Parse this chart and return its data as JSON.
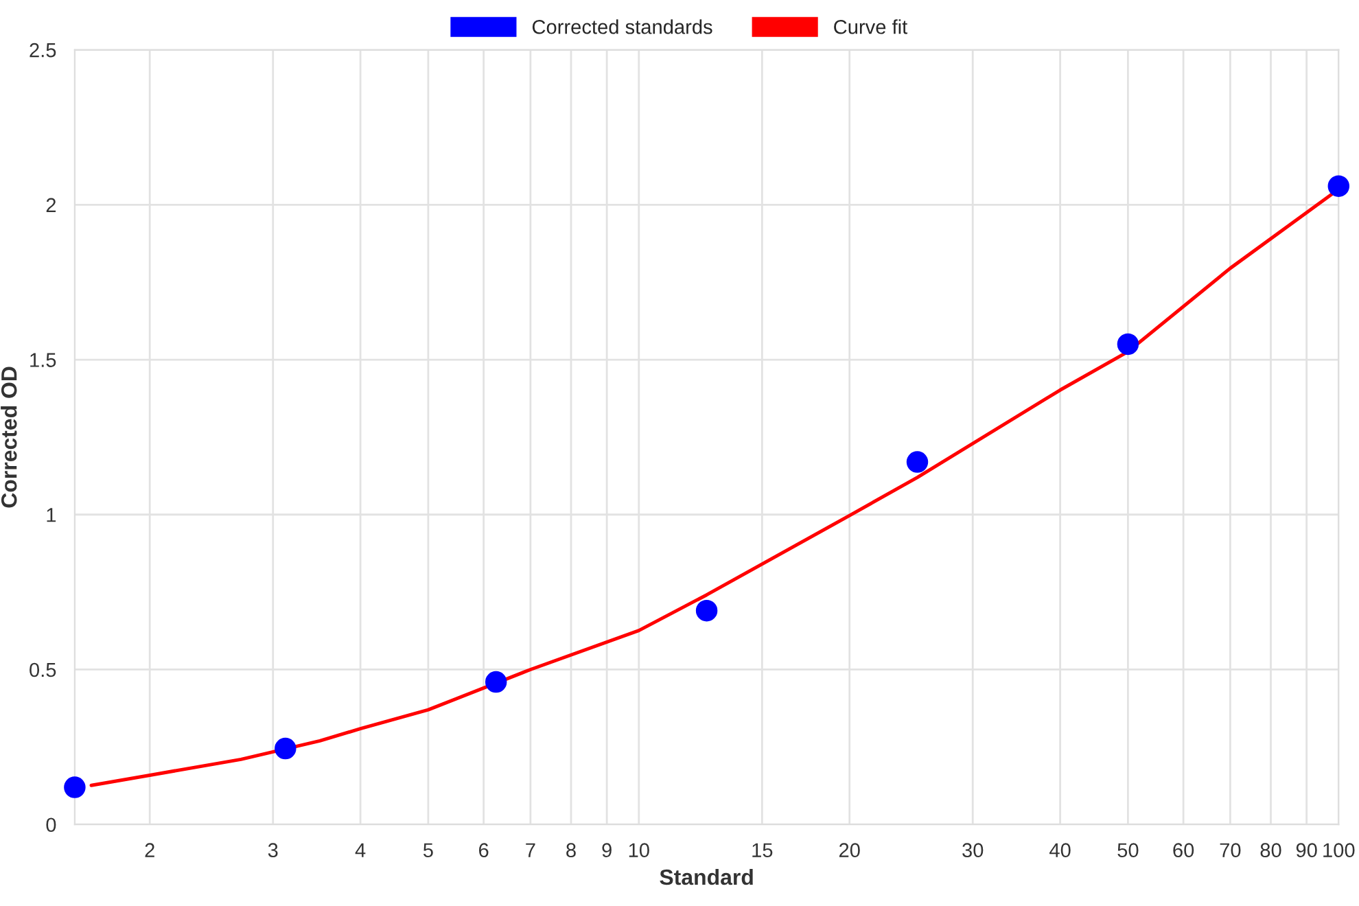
{
  "chart_data": {
    "type": "scatter",
    "xlabel": "Standard",
    "ylabel": "Corrected OD",
    "log": "x",
    "grid": true,
    "legend": "top",
    "xlim": [
      1.5625,
      100
    ],
    "xticks": [
      2,
      3,
      4,
      5,
      6,
      7,
      8,
      9,
      10,
      15,
      20,
      30,
      40,
      50,
      60,
      70,
      80,
      90,
      100
    ],
    "ylim": [
      0,
      2.5
    ],
    "yticks": [
      0,
      0.5,
      1,
      1.5,
      2,
      2.5
    ],
    "series": [
      {
        "name": "Corrected standards",
        "color": "#0000ff",
        "marker": "circle",
        "x": [
          1.5625,
          3.125,
          6.25,
          12.5,
          25,
          50,
          100
        ],
        "values": [
          0.12,
          0.245,
          0.46,
          0.69,
          1.17,
          1.55,
          2.06
        ]
      },
      {
        "name": "Curve fit",
        "type": "line",
        "color": "#ff0000",
        "marker": "none",
        "line_style": "solid",
        "x": [
          1.65,
          2,
          2.7,
          3.5,
          4,
          5,
          7,
          10,
          12.5,
          20,
          25,
          40,
          50,
          70,
          100
        ],
        "values": [
          0.126,
          0.159,
          0.21,
          0.27,
          0.309,
          0.37,
          0.5,
          0.626,
          0.741,
          0.997,
          1.12,
          1.402,
          1.526,
          1.795,
          2.05
        ]
      }
    ]
  }
}
